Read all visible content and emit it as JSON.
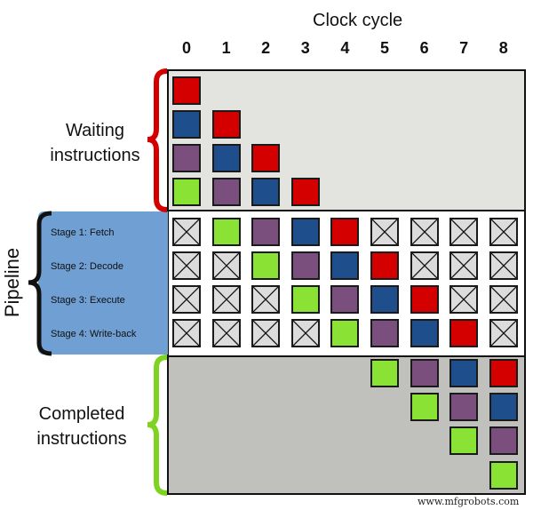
{
  "title": "Clock cycle",
  "cycles": [
    "0",
    "1",
    "2",
    "3",
    "4",
    "5",
    "6",
    "7",
    "8"
  ],
  "labels": {
    "waiting": [
      "Waiting",
      "instructions"
    ],
    "pipeline": "Pipeline",
    "completed": [
      "Completed",
      "instructions"
    ]
  },
  "stages": [
    "Stage 1: Fetch",
    "Stage 2: Decode",
    "Stage 3: Execute",
    "Stage 4: Write-back"
  ],
  "watermark": "www.mfgrobots.com",
  "colors": {
    "R": "#d40000",
    "B": "#1f4e8c",
    "P": "#7a4f7e",
    "G": "#8ae234",
    "X": "#dcdcdc",
    "bracket_waiting": "#d40000",
    "bracket_pipeline": "#111111",
    "bracket_completed": "#7ed321"
  },
  "legend_note": "R=red, B=blue, P=purple, G=green, X=empty stage, .=none",
  "waiting_grid": [
    "R........",
    "BR.......",
    "PBR......",
    "GPBR....."
  ],
  "pipeline_grid": [
    "XGPBRXXXX",
    "XXGPBRXXX",
    "XXXGPBRXX",
    "XXXXGPBRX"
  ],
  "completed_grid": [
    ".....GPBR",
    "......GPB",
    ".......GP",
    "........G"
  ]
}
